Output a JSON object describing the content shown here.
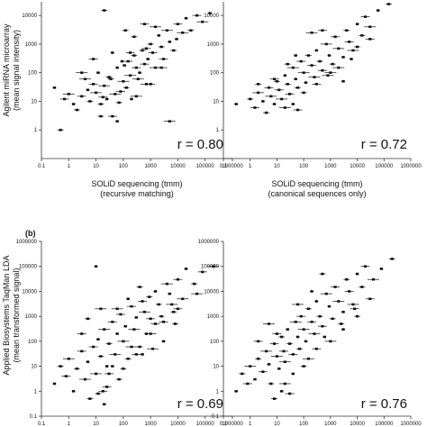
{
  "figure": {
    "panel_b_label": "(b)",
    "row_a_ylabel": [
      "Agilent miRNA microarray",
      "(mean signal intensity)"
    ],
    "row_b_ylabel": [
      "Applied Biosystems TaqMan LDA",
      "(mean transformed signal)"
    ]
  },
  "chart_data": [
    {
      "type": "scatter",
      "panel": "a-left",
      "xlabel": [
        "SOLiD sequencing (tmm)",
        "(recursive matching)"
      ],
      "ylabel": "",
      "xscale": "log",
      "yscale": "log",
      "xlim": [
        0.1,
        1000000
      ],
      "ylim": [
        0.1,
        30000
      ],
      "xticks": [
        0.1,
        1,
        10,
        100,
        1000,
        10000,
        100000,
        1000000
      ],
      "xtick_labels": [
        "0.1",
        "1",
        "10",
        "100",
        "1000",
        "10000",
        "100000",
        "1000000"
      ],
      "yticks": [
        1,
        10,
        100,
        1000,
        10000
      ],
      "ytick_labels": [
        "1",
        "10",
        "100",
        "1000",
        "10000"
      ],
      "annotation": "r = 0.80",
      "grid": false,
      "points": [
        [
          0.3,
          30
        ],
        [
          0.5,
          1
        ],
        [
          0.7,
          12
        ],
        [
          1,
          18
        ],
        [
          1.5,
          8
        ],
        [
          2,
          5
        ],
        [
          3,
          15
        ],
        [
          4,
          60
        ],
        [
          5,
          25
        ],
        [
          6,
          10
        ],
        [
          8,
          40
        ],
        [
          10,
          20
        ],
        [
          12,
          100
        ],
        [
          15,
          8
        ],
        [
          18,
          14
        ],
        [
          20,
          35
        ],
        [
          25,
          12
        ],
        [
          30,
          70
        ],
        [
          40,
          3
        ],
        [
          50,
          18
        ],
        [
          60,
          150
        ],
        [
          70,
          9
        ],
        [
          80,
          22
        ],
        [
          100,
          50
        ],
        [
          110,
          180
        ],
        [
          130,
          30
        ],
        [
          150,
          250
        ],
        [
          180,
          80
        ],
        [
          200,
          12
        ],
        [
          250,
          400
        ],
        [
          300,
          150
        ],
        [
          350,
          60
        ],
        [
          400,
          100
        ],
        [
          500,
          600
        ],
        [
          600,
          200
        ],
        [
          700,
          40
        ],
        [
          800,
          300
        ],
        [
          1000,
          1000
        ],
        [
          1200,
          500
        ],
        [
          1500,
          150
        ],
        [
          2000,
          2000
        ],
        [
          2500,
          800
        ],
        [
          3000,
          300
        ],
        [
          4000,
          3000
        ],
        [
          5000,
          1200
        ],
        [
          7000,
          600
        ],
        [
          10000,
          5000
        ],
        [
          15000,
          2500
        ],
        [
          20000,
          8000
        ],
        [
          30000,
          3000
        ],
        [
          50000,
          10000
        ],
        [
          80000,
          6000
        ],
        [
          150000,
          12000
        ],
        [
          20,
          15000
        ],
        [
          8,
          300
        ],
        [
          3,
          100
        ],
        [
          40,
          500
        ],
        [
          120,
          3000
        ],
        [
          600,
          5000
        ],
        [
          5000,
          2
        ],
        [
          60,
          2
        ],
        [
          15,
          3
        ],
        [
          1000,
          40
        ],
        [
          300,
          15
        ],
        [
          90,
          250
        ],
        [
          250,
          1800
        ],
        [
          700,
          700
        ],
        [
          1500,
          4000
        ],
        [
          9000,
          1500
        ],
        [
          35,
          60
        ],
        [
          180,
          500
        ],
        [
          2500,
          150
        ]
      ]
    },
    {
      "type": "scatter",
      "panel": "a-right",
      "xlabel": [
        "SOLiD sequencing (tmm)",
        "(canonical sequences only)"
      ],
      "ylabel": "",
      "xscale": "log",
      "yscale": "log",
      "xlim": [
        0.1,
        1000000
      ],
      "ylim": [
        0.1,
        30000
      ],
      "xticks": [
        0.1,
        1,
        10,
        100,
        1000,
        10000,
        100000,
        1000000
      ],
      "xtick_labels": [
        "0.1",
        "1",
        "10",
        "100",
        "1000",
        "10000",
        "100000",
        "1000000"
      ],
      "yticks": [
        1,
        10,
        100,
        1000,
        10000
      ],
      "ytick_labels": [
        "1",
        "10",
        "100",
        "1000",
        "10000"
      ],
      "annotation": "r = 0.72",
      "grid": false,
      "points": [
        [
          0.3,
          8
        ],
        [
          1,
          12
        ],
        [
          1.5,
          6
        ],
        [
          2,
          20
        ],
        [
          3,
          10
        ],
        [
          4,
          4
        ],
        [
          5,
          30
        ],
        [
          6,
          15
        ],
        [
          8,
          8
        ],
        [
          10,
          50
        ],
        [
          12,
          25
        ],
        [
          15,
          12
        ],
        [
          20,
          80
        ],
        [
          25,
          40
        ],
        [
          30,
          18
        ],
        [
          40,
          150
        ],
        [
          50,
          60
        ],
        [
          60,
          30
        ],
        [
          80,
          250
        ],
        [
          100,
          100
        ],
        [
          120,
          45
        ],
        [
          150,
          400
        ],
        [
          200,
          180
        ],
        [
          250,
          70
        ],
        [
          300,
          600
        ],
        [
          400,
          250
        ],
        [
          500,
          120
        ],
        [
          700,
          1000
        ],
        [
          900,
          400
        ],
        [
          1200,
          200
        ],
        [
          1500,
          1800
        ],
        [
          2000,
          700
        ],
        [
          3000,
          350
        ],
        [
          4000,
          3000
        ],
        [
          5000,
          1200
        ],
        [
          7000,
          600
        ],
        [
          10000,
          5000
        ],
        [
          15000,
          2000
        ],
        [
          20000,
          9000
        ],
        [
          30000,
          4000
        ],
        [
          60000,
          15000
        ],
        [
          150000,
          25000
        ],
        [
          8,
          60
        ],
        [
          20,
          6
        ],
        [
          40,
          8
        ],
        [
          100,
          20
        ],
        [
          300,
          40
        ],
        [
          1000,
          100
        ],
        [
          3000,
          50
        ],
        [
          10000,
          800
        ],
        [
          30000,
          1500
        ],
        [
          200,
          2500
        ],
        [
          50,
          400
        ],
        [
          2,
          40
        ],
        [
          500,
          3000
        ],
        [
          2000,
          150
        ],
        [
          6000,
          300
        ],
        [
          25,
          200
        ],
        [
          60,
          5
        ],
        [
          800,
          80
        ]
      ]
    },
    {
      "type": "scatter",
      "panel": "b-left",
      "xlabel": "",
      "ylabel": "",
      "xscale": "log",
      "yscale": "log",
      "xlim": [
        0.1,
        1000000
      ],
      "ylim": [
        0.1,
        1000000
      ],
      "xticks": [
        0.1,
        1,
        10,
        100,
        1000,
        10000,
        100000,
        1000000
      ],
      "xtick_labels": [
        "0.1",
        "1",
        "10",
        "100",
        "1000",
        "10000",
        "100000",
        "1000000"
      ],
      "yticks": [
        0.1,
        1,
        10,
        100,
        1000,
        10000,
        100000,
        1000000
      ],
      "ytick_labels": [
        "0.1",
        "1",
        "10",
        "100",
        "1000",
        "10000",
        "100000",
        "1000000"
      ],
      "annotation": "r = 0.69",
      "grid": false,
      "points": [
        [
          0.3,
          2
        ],
        [
          0.5,
          10
        ],
        [
          0.8,
          4
        ],
        [
          1,
          20
        ],
        [
          1.5,
          1
        ],
        [
          2,
          8
        ],
        [
          3,
          40
        ],
        [
          4,
          3
        ],
        [
          5,
          15
        ],
        [
          6,
          0.5
        ],
        [
          8,
          60
        ],
        [
          10,
          5
        ],
        [
          12,
          120
        ],
        [
          15,
          25
        ],
        [
          18,
          1
        ],
        [
          20,
          300
        ],
        [
          25,
          10
        ],
        [
          30,
          80
        ],
        [
          40,
          600
        ],
        [
          50,
          30
        ],
        [
          60,
          200
        ],
        [
          70,
          3
        ],
        [
          80,
          1200
        ],
        [
          100,
          100
        ],
        [
          120,
          400
        ],
        [
          150,
          20
        ],
        [
          200,
          2500
        ],
        [
          250,
          300
        ],
        [
          300,
          900
        ],
        [
          400,
          60
        ],
        [
          500,
          4000
        ],
        [
          600,
          1500
        ],
        [
          700,
          200
        ],
        [
          900,
          6000
        ],
        [
          1000,
          800
        ],
        [
          1200,
          50
        ],
        [
          1500,
          10000
        ],
        [
          2000,
          3000
        ],
        [
          3000,
          600
        ],
        [
          4000,
          20000
        ],
        [
          5000,
          8000
        ],
        [
          7000,
          1500
        ],
        [
          10000,
          30000
        ],
        [
          15000,
          5000
        ],
        [
          20000,
          80000
        ],
        [
          40000,
          20000
        ],
        [
          80000,
          60000
        ],
        [
          200000,
          100000
        ],
        [
          10,
          100000
        ],
        [
          5,
          800
        ],
        [
          3,
          200
        ],
        [
          15,
          2000
        ],
        [
          40,
          10
        ],
        [
          100,
          8
        ],
        [
          300,
          30
        ],
        [
          1000,
          200
        ],
        [
          3000,
          100
        ],
        [
          8000,
          500
        ],
        [
          30,
          5
        ],
        [
          60,
          2000
        ],
        [
          150,
          5000
        ],
        [
          400,
          15000
        ],
        [
          1500,
          500
        ],
        [
          6000,
          3000
        ],
        [
          20,
          0.3
        ],
        [
          12,
          0.8
        ],
        [
          25,
          1.5
        ],
        [
          200,
          60
        ],
        [
          500,
          30
        ],
        [
          2500,
          1000
        ],
        [
          10000,
          2000
        ],
        [
          50000,
          8000
        ]
      ]
    },
    {
      "type": "scatter",
      "panel": "b-right",
      "xlabel": "",
      "ylabel": "",
      "xscale": "log",
      "yscale": "log",
      "xlim": [
        0.1,
        1000000
      ],
      "ylim": [
        0.1,
        1000000
      ],
      "xticks": [
        0.1,
        1,
        10,
        100,
        1000,
        10000,
        100000,
        1000000
      ],
      "xtick_labels": [
        "0.1",
        "1",
        "10",
        "100",
        "1000",
        "10000",
        "100000",
        "1000000"
      ],
      "yticks": [
        0.1,
        1,
        10,
        100,
        1000,
        10000,
        100000,
        1000000
      ],
      "ytick_labels": [
        "0.1",
        "1",
        "10",
        "100",
        "1000",
        "10000",
        "100000",
        "1000000"
      ],
      "annotation": "r = 0.76",
      "grid": false,
      "points": [
        [
          0.3,
          1
        ],
        [
          0.5,
          5
        ],
        [
          0.8,
          2
        ],
        [
          1,
          10
        ],
        [
          1.5,
          3
        ],
        [
          2,
          20
        ],
        [
          3,
          6
        ],
        [
          4,
          40
        ],
        [
          5,
          12
        ],
        [
          6,
          2
        ],
        [
          8,
          80
        ],
        [
          10,
          25
        ],
        [
          12,
          8
        ],
        [
          15,
          150
        ],
        [
          18,
          40
        ],
        [
          20,
          15
        ],
        [
          25,
          300
        ],
        [
          30,
          80
        ],
        [
          40,
          30
        ],
        [
          50,
          600
        ],
        [
          60,
          150
        ],
        [
          70,
          50
        ],
        [
          80,
          1000
        ],
        [
          100,
          300
        ],
        [
          120,
          100
        ],
        [
          150,
          2000
        ],
        [
          200,
          600
        ],
        [
          250,
          200
        ],
        [
          300,
          4000
        ],
        [
          400,
          1000
        ],
        [
          500,
          400
        ],
        [
          700,
          8000
        ],
        [
          900,
          2500
        ],
        [
          1200,
          800
        ],
        [
          1500,
          15000
        ],
        [
          2000,
          4000
        ],
        [
          3000,
          1500
        ],
        [
          4000,
          30000
        ],
        [
          5000,
          10000
        ],
        [
          7000,
          3000
        ],
        [
          10000,
          50000
        ],
        [
          15000,
          15000
        ],
        [
          20000,
          100000
        ],
        [
          40000,
          30000
        ],
        [
          80000,
          80000
        ],
        [
          200000,
          200000
        ],
        [
          10,
          200
        ],
        [
          20,
          2
        ],
        [
          40,
          5
        ],
        [
          100,
          10
        ],
        [
          300,
          50
        ],
        [
          1000,
          100
        ],
        [
          3000,
          300
        ],
        [
          10000,
          1000
        ],
        [
          30000,
          5000
        ],
        [
          60,
          3000
        ],
        [
          200,
          10000
        ],
        [
          500,
          50000
        ],
        [
          2,
          100
        ],
        [
          5,
          500
        ],
        [
          15,
          1
        ],
        [
          8,
          0.5
        ],
        [
          30,
          0.8
        ],
        [
          150,
          20
        ],
        [
          600,
          150
        ],
        [
          2500,
          500
        ],
        [
          8000,
          2000
        ]
      ]
    }
  ]
}
